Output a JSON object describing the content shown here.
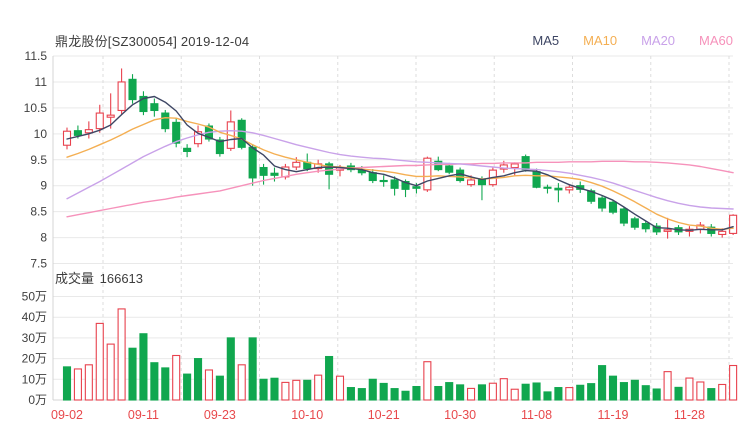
{
  "header": {
    "title": "鼎龙股份[SZ300054] 2019-12-04"
  },
  "legend": {
    "items": [
      {
        "label": "MA5",
        "color": "#3e4664"
      },
      {
        "label": "MA10",
        "color": "#f4af53"
      },
      {
        "label": "MA20",
        "color": "#c9a2e9"
      },
      {
        "label": "MA60",
        "color": "#f692bb"
      }
    ]
  },
  "volume_header": {
    "label": "成交量",
    "value": "166613"
  },
  "colors": {
    "up": "#e8414d",
    "down": "#10a74f",
    "grid": "#e9e9e9",
    "grid_dashed": "#dddddd",
    "axis_line": "#d4d4d4",
    "axis_text": "#404040",
    "date_text": "#e8494c",
    "ma5": "#3e4664",
    "ma10": "#f4af53",
    "ma20": "#c9a2e9",
    "ma60": "#f692bb",
    "background": "#ffffff"
  },
  "chart_data": [
    {
      "type": "candlestick",
      "title": "鼎龙股份[SZ300054] 2019-12-04",
      "ylim": [
        7.5,
        11.5
      ],
      "ytick_values": [
        11.5,
        11,
        10.5,
        10,
        9.5,
        9,
        8.5,
        8,
        7.5
      ],
      "ytick_labels": [
        "11.5",
        "11",
        "10.5",
        "10",
        "9.5",
        "9",
        "8.5",
        "8",
        "7.5"
      ],
      "xtick_labels": [
        "09-02",
        "09-11",
        "09-23",
        "10-10",
        "10-21",
        "10-30",
        "11-08",
        "11-19",
        "11-28"
      ],
      "xtick_indices": [
        0,
        7,
        14,
        22,
        29,
        36,
        43,
        50,
        57
      ],
      "grid": true,
      "legend_entries": [
        "MA5",
        "MA10",
        "MA20",
        "MA60"
      ],
      "dates": [
        "09-02",
        "09-03",
        "09-04",
        "09-05",
        "09-06",
        "09-09",
        "09-10",
        "09-11",
        "09-12",
        "09-16",
        "09-17",
        "09-18",
        "09-19",
        "09-20",
        "09-23",
        "09-24",
        "09-25",
        "09-26",
        "09-27",
        "09-30",
        "10-08",
        "10-09",
        "10-10",
        "10-11",
        "10-14",
        "10-15",
        "10-16",
        "10-17",
        "10-18",
        "10-21",
        "10-22",
        "10-23",
        "10-24",
        "10-25",
        "10-28",
        "10-29",
        "10-30",
        "10-31",
        "11-01",
        "11-04",
        "11-05",
        "11-06",
        "11-07",
        "11-08",
        "11-11",
        "11-12",
        "11-13",
        "11-14",
        "11-15",
        "11-18",
        "11-19",
        "11-20",
        "11-21",
        "11-22",
        "11-25",
        "11-26",
        "11-27",
        "11-28",
        "11-29",
        "12-02",
        "12-03",
        "12-04"
      ],
      "open": [
        9.78,
        10.06,
        10.02,
        10.1,
        10.32,
        10.45,
        11.05,
        10.72,
        10.58,
        10.4,
        10.22,
        9.72,
        9.81,
        10.15,
        9.88,
        9.72,
        10.26,
        9.74,
        9.35,
        9.24,
        9.17,
        9.36,
        9.45,
        9.33,
        9.42,
        9.3,
        9.38,
        9.31,
        9.25,
        9.1,
        9.11,
        9.08,
        8.98,
        8.92,
        9.47,
        9.38,
        9.3,
        9.02,
        9.11,
        9.02,
        9.32,
        9.35,
        9.56,
        9.27,
        8.97,
        8.95,
        8.92,
        9.0,
        8.9,
        8.76,
        8.68,
        8.55,
        8.36,
        8.27,
        8.22,
        8.12,
        8.19,
        8.12,
        8.16,
        8.2,
        8.06,
        8.08
      ],
      "high": [
        10.12,
        10.16,
        10.24,
        10.56,
        10.78,
        11.26,
        11.15,
        10.82,
        10.68,
        10.46,
        10.3,
        9.8,
        10.16,
        10.2,
        9.94,
        10.45,
        10.3,
        9.8,
        9.42,
        9.35,
        9.42,
        9.55,
        9.62,
        9.5,
        9.46,
        9.4,
        9.44,
        9.38,
        9.32,
        9.2,
        9.18,
        9.12,
        9.05,
        9.56,
        9.56,
        9.44,
        9.35,
        9.2,
        9.18,
        9.36,
        9.48,
        9.45,
        9.6,
        9.33,
        9.02,
        9.05,
        9.03,
        9.08,
        8.94,
        8.8,
        8.72,
        8.58,
        8.4,
        8.32,
        8.28,
        8.38,
        8.24,
        8.22,
        8.3,
        8.26,
        8.18,
        8.45
      ],
      "low": [
        9.7,
        9.91,
        9.91,
        10.02,
        10.1,
        10.38,
        10.58,
        10.36,
        10.33,
        10.03,
        9.74,
        9.55,
        9.74,
        9.85,
        9.56,
        9.67,
        9.7,
        9.0,
        9.02,
        9.08,
        9.12,
        9.3,
        9.28,
        9.25,
        8.93,
        9.18,
        9.26,
        9.2,
        9.05,
        8.98,
        8.81,
        8.78,
        8.85,
        8.88,
        9.28,
        9.22,
        9.06,
        8.98,
        8.72,
        8.98,
        9.25,
        9.2,
        9.27,
        8.95,
        8.85,
        8.68,
        8.85,
        8.86,
        8.65,
        8.5,
        8.45,
        8.22,
        8.15,
        8.1,
        8.05,
        7.98,
        8.05,
        8.02,
        8.08,
        8.02,
        8.0,
        8.05
      ],
      "close": [
        10.05,
        9.97,
        10.08,
        10.4,
        10.36,
        11.0,
        10.66,
        10.43,
        10.45,
        10.1,
        9.82,
        9.66,
        10.04,
        9.9,
        9.62,
        10.23,
        9.74,
        9.15,
        9.2,
        9.2,
        9.36,
        9.45,
        9.33,
        9.42,
        9.22,
        9.35,
        9.31,
        9.25,
        9.1,
        9.08,
        8.95,
        8.93,
        8.95,
        9.53,
        9.31,
        9.26,
        9.1,
        9.11,
        9.02,
        9.3,
        9.4,
        9.42,
        9.31,
        8.97,
        8.95,
        8.92,
        8.97,
        8.93,
        8.7,
        8.57,
        8.49,
        8.28,
        8.2,
        8.17,
        8.11,
        8.15,
        8.11,
        8.16,
        8.24,
        8.08,
        8.12,
        8.43
      ],
      "ma5": [
        9.9,
        9.95,
        10.0,
        10.07,
        10.17,
        10.37,
        10.56,
        10.68,
        10.72,
        10.61,
        10.44,
        10.17,
        10.01,
        9.93,
        9.85,
        9.89,
        9.91,
        9.73,
        9.59,
        9.38,
        9.31,
        9.27,
        9.31,
        9.35,
        9.36,
        9.35,
        9.33,
        9.31,
        9.25,
        9.22,
        9.15,
        9.06,
        9.0,
        9.09,
        9.14,
        9.19,
        9.23,
        9.17,
        9.12,
        9.16,
        9.19,
        9.25,
        9.29,
        9.28,
        9.21,
        9.11,
        9.02,
        8.95,
        8.89,
        8.81,
        8.72,
        8.59,
        8.45,
        8.32,
        8.19,
        8.18,
        8.15,
        8.14,
        8.16,
        8.15,
        8.15,
        8.21
      ],
      "ma10": [
        9.55,
        9.62,
        9.7,
        9.79,
        9.88,
        9.98,
        10.09,
        10.18,
        10.27,
        10.31,
        10.3,
        10.24,
        10.19,
        10.13,
        10.03,
        9.97,
        9.9,
        9.79,
        9.69,
        9.61,
        9.55,
        9.5,
        9.45,
        9.41,
        9.37,
        9.36,
        9.34,
        9.32,
        9.3,
        9.28,
        9.25,
        9.21,
        9.18,
        9.18,
        9.19,
        9.18,
        9.17,
        9.15,
        9.13,
        9.14,
        9.16,
        9.19,
        9.2,
        9.19,
        9.19,
        9.17,
        9.15,
        9.12,
        9.06,
        8.99,
        8.9,
        8.8,
        8.69,
        8.57,
        8.45,
        8.36,
        8.29,
        8.24,
        8.22,
        8.18,
        8.16,
        8.18
      ],
      "ma20": [
        8.75,
        8.86,
        8.97,
        9.08,
        9.2,
        9.32,
        9.44,
        9.56,
        9.66,
        9.76,
        9.85,
        9.92,
        9.98,
        10.03,
        10.05,
        10.06,
        10.05,
        10.02,
        9.97,
        9.91,
        9.85,
        9.79,
        9.74,
        9.69,
        9.64,
        9.6,
        9.57,
        9.55,
        9.53,
        9.52,
        9.5,
        9.48,
        9.46,
        9.45,
        9.44,
        9.43,
        9.42,
        9.4,
        9.38,
        9.36,
        9.34,
        9.33,
        9.32,
        9.31,
        9.29,
        9.27,
        9.24,
        9.2,
        9.16,
        9.11,
        9.05,
        8.98,
        8.91,
        8.84,
        8.77,
        8.71,
        8.66,
        8.62,
        8.59,
        8.57,
        8.56,
        8.55
      ],
      "ma60": [
        8.4,
        8.44,
        8.48,
        8.52,
        8.56,
        8.6,
        8.64,
        8.68,
        8.71,
        8.74,
        8.78,
        8.81,
        8.84,
        8.87,
        8.9,
        8.95,
        9.0,
        9.05,
        9.1,
        9.14,
        9.18,
        9.22,
        9.25,
        9.28,
        9.3,
        9.32,
        9.34,
        9.35,
        9.36,
        9.37,
        9.38,
        9.39,
        9.39,
        9.4,
        9.41,
        9.41,
        9.42,
        9.42,
        9.43,
        9.43,
        9.44,
        9.44,
        9.44,
        9.45,
        9.45,
        9.45,
        9.46,
        9.46,
        9.46,
        9.47,
        9.47,
        9.47,
        9.46,
        9.46,
        9.45,
        9.44,
        9.42,
        9.4,
        9.37,
        9.33,
        9.29,
        9.25
      ]
    },
    {
      "type": "bar",
      "title": "成交量 166613",
      "ylabel": "成交量",
      "current_value": "166613",
      "ylim_wan": [
        0,
        50
      ],
      "ytick_values_wan": [
        50,
        40,
        30,
        20,
        10,
        0
      ],
      "ytick_labels": [
        "50万",
        "40万",
        "30万",
        "20万",
        "10万",
        "0万"
      ],
      "values_wan": [
        16,
        15,
        17,
        37,
        27,
        44,
        25,
        32,
        18,
        15.5,
        21.5,
        12.5,
        20,
        14.5,
        11.5,
        30,
        17,
        30,
        10,
        10.5,
        8.5,
        9.5,
        9.5,
        12,
        21,
        11.5,
        6,
        5.5,
        10,
        8,
        5.5,
        4.2,
        6.5,
        18.5,
        6.5,
        8.4,
        7.3,
        5.6,
        7.3,
        8.1,
        10.3,
        5.2,
        7.6,
        8.2,
        3.9,
        6,
        6,
        7.1,
        7.9,
        16.6,
        11.5,
        8.4,
        9.5,
        6.9,
        5.3,
        13.7,
        6.1,
        10.6,
        8.7,
        5.5,
        7.5,
        16.66
      ],
      "bar_dir": "DUUUUUDDDDUDDUDDUDDDUUDUDUDDDDDDDUDDDUDUUUDDDDUDDDDDDDDUDUUDUU"
    }
  ]
}
